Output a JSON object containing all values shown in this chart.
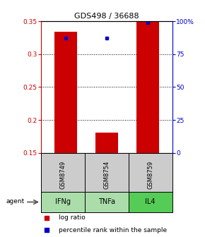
{
  "title": "GDS498 / 36688",
  "samples": [
    "GSM8749",
    "GSM8754",
    "GSM8759"
  ],
  "agents": [
    "IFNg",
    "TNFa",
    "IL4"
  ],
  "log_ratios": [
    0.334,
    0.181,
    0.349
  ],
  "percentile_ranks": [
    87,
    87,
    99
  ],
  "ylim_left": [
    0.15,
    0.35
  ],
  "ylim_right": [
    0,
    100
  ],
  "yticks_left": [
    0.15,
    0.2,
    0.25,
    0.3,
    0.35
  ],
  "yticks_right": [
    0,
    25,
    50,
    75,
    100
  ],
  "ytick_labels_left": [
    "0.15",
    "0.2",
    "0.25",
    "0.3",
    "0.35"
  ],
  "ytick_labels_right": [
    "0",
    "25",
    "50",
    "75",
    "100%"
  ],
  "bar_color": "#cc0000",
  "percentile_color": "#0000cc",
  "sample_bg_color": "#cccccc",
  "left_axis_color": "#cc0000",
  "right_axis_color": "#0000cc",
  "bar_width": 0.55,
  "agent_colors": [
    "#aaddaa",
    "#aaddaa",
    "#55cc55"
  ]
}
